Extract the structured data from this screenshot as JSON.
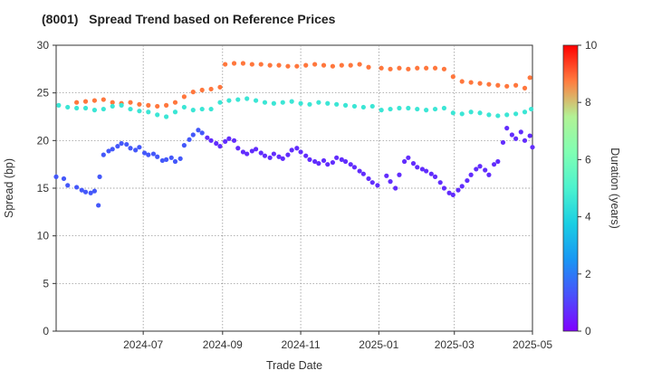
{
  "chart_data": {
    "type": "scatter",
    "title": "(8001)   Spread Trend based on Reference Prices",
    "xlabel": "Trade Date",
    "ylabel": "Spread (bp)",
    "colorbar_label": "Duration (years)",
    "xlim": [
      "2024-04-24",
      "2025-05-01"
    ],
    "ylim": [
      0,
      30
    ],
    "x_ticks": [
      "2024-07-01",
      "2024-09-01",
      "2024-11-01",
      "2025-01-01",
      "2025-03-01",
      "2025-05-01"
    ],
    "x_tick_labels": [
      "2024-07",
      "2024-09",
      "2024-11",
      "2025-01",
      "2025-03",
      "2025-05"
    ],
    "y_ticks": [
      0,
      5,
      10,
      15,
      20,
      25,
      30
    ],
    "colorbar_range": [
      0,
      10
    ],
    "colorbar_ticks": [
      0,
      2,
      4,
      6,
      8,
      10
    ],
    "colormap": "rainbow",
    "grid": true,
    "series": [
      {
        "duration_years": 8.8,
        "points": [
          [
            "2024-05-10",
            24.0
          ],
          [
            "2024-05-17",
            24.1
          ],
          [
            "2024-05-24",
            24.2
          ],
          [
            "2024-05-31",
            24.3
          ],
          [
            "2024-06-07",
            24.0
          ],
          [
            "2024-06-14",
            23.9
          ],
          [
            "2024-06-21",
            24.0
          ],
          [
            "2024-06-28",
            23.8
          ],
          [
            "2024-07-05",
            23.7
          ],
          [
            "2024-07-12",
            23.6
          ],
          [
            "2024-07-19",
            23.7
          ],
          [
            "2024-07-26",
            24.0
          ],
          [
            "2024-08-02",
            24.6
          ],
          [
            "2024-08-09",
            25.1
          ],
          [
            "2024-08-16",
            25.3
          ],
          [
            "2024-08-23",
            25.4
          ],
          [
            "2024-08-30",
            25.6
          ],
          [
            "2024-09-03",
            28.0
          ],
          [
            "2024-09-10",
            28.1
          ],
          [
            "2024-09-17",
            28.1
          ],
          [
            "2024-09-24",
            28.0
          ],
          [
            "2024-10-01",
            28.0
          ],
          [
            "2024-10-08",
            27.9
          ],
          [
            "2024-10-15",
            27.9
          ],
          [
            "2024-10-22",
            27.8
          ],
          [
            "2024-10-29",
            27.8
          ],
          [
            "2024-11-05",
            27.9
          ],
          [
            "2024-11-12",
            28.0
          ],
          [
            "2024-11-19",
            27.9
          ],
          [
            "2024-11-26",
            27.8
          ],
          [
            "2024-12-03",
            27.9
          ],
          [
            "2024-12-10",
            27.9
          ],
          [
            "2024-12-17",
            28.0
          ],
          [
            "2024-12-24",
            27.7
          ],
          [
            "2025-01-03",
            27.6
          ],
          [
            "2025-01-10",
            27.5
          ],
          [
            "2025-01-17",
            27.6
          ],
          [
            "2025-01-24",
            27.5
          ],
          [
            "2025-01-31",
            27.6
          ],
          [
            "2025-02-07",
            27.6
          ],
          [
            "2025-02-14",
            27.6
          ],
          [
            "2025-02-21",
            27.5
          ],
          [
            "2025-02-28",
            26.7
          ],
          [
            "2025-03-07",
            26.2
          ],
          [
            "2025-03-14",
            26.1
          ],
          [
            "2025-03-21",
            26.0
          ],
          [
            "2025-03-28",
            25.9
          ],
          [
            "2025-04-04",
            25.8
          ],
          [
            "2025-04-11",
            25.7
          ],
          [
            "2025-04-18",
            25.8
          ],
          [
            "2025-04-25",
            25.5
          ],
          [
            "2025-04-29",
            26.6
          ]
        ]
      },
      {
        "duration_years": 4.6,
        "points": [
          [
            "2024-04-26",
            23.7
          ],
          [
            "2024-05-03",
            23.5
          ],
          [
            "2024-05-10",
            23.4
          ],
          [
            "2024-05-17",
            23.4
          ],
          [
            "2024-05-24",
            23.2
          ],
          [
            "2024-05-31",
            23.3
          ],
          [
            "2024-06-07",
            23.6
          ],
          [
            "2024-06-14",
            23.7
          ],
          [
            "2024-06-21",
            23.3
          ],
          [
            "2024-06-28",
            23.1
          ],
          [
            "2024-07-05",
            23.0
          ],
          [
            "2024-07-12",
            22.7
          ],
          [
            "2024-07-19",
            22.5
          ],
          [
            "2024-07-26",
            23.0
          ],
          [
            "2024-08-02",
            23.5
          ],
          [
            "2024-08-09",
            23.2
          ],
          [
            "2024-08-16",
            23.3
          ],
          [
            "2024-08-23",
            23.3
          ],
          [
            "2024-08-30",
            24.0
          ],
          [
            "2024-09-06",
            24.2
          ],
          [
            "2024-09-13",
            24.3
          ],
          [
            "2024-09-20",
            24.4
          ],
          [
            "2024-09-27",
            24.2
          ],
          [
            "2024-10-04",
            24.0
          ],
          [
            "2024-10-11",
            23.9
          ],
          [
            "2024-10-18",
            24.0
          ],
          [
            "2024-10-25",
            24.1
          ],
          [
            "2024-11-01",
            23.9
          ],
          [
            "2024-11-08",
            23.8
          ],
          [
            "2024-11-15",
            24.0
          ],
          [
            "2024-11-22",
            23.9
          ],
          [
            "2024-11-29",
            23.8
          ],
          [
            "2024-12-06",
            23.7
          ],
          [
            "2024-12-13",
            23.6
          ],
          [
            "2024-12-20",
            23.5
          ],
          [
            "2024-12-27",
            23.6
          ],
          [
            "2025-01-03",
            23.2
          ],
          [
            "2025-01-10",
            23.3
          ],
          [
            "2025-01-17",
            23.4
          ],
          [
            "2025-01-24",
            23.4
          ],
          [
            "2025-01-31",
            23.3
          ],
          [
            "2025-02-07",
            23.2
          ],
          [
            "2025-02-14",
            23.3
          ],
          [
            "2025-02-21",
            23.4
          ],
          [
            "2025-02-28",
            22.9
          ],
          [
            "2025-03-07",
            22.8
          ],
          [
            "2025-03-14",
            23.0
          ],
          [
            "2025-03-21",
            22.9
          ],
          [
            "2025-03-28",
            22.7
          ],
          [
            "2025-04-04",
            22.6
          ],
          [
            "2025-04-11",
            22.7
          ],
          [
            "2025-04-18",
            22.8
          ],
          [
            "2025-04-25",
            23.0
          ],
          [
            "2025-04-30",
            23.3
          ]
        ]
      },
      {
        "duration_years": 1.4,
        "points": [
          [
            "2024-04-24",
            16.2
          ],
          [
            "2024-04-30",
            16.0
          ],
          [
            "2024-05-03",
            15.3
          ],
          [
            "2024-05-10",
            15.1
          ],
          [
            "2024-05-14",
            14.8
          ],
          [
            "2024-05-17",
            14.6
          ],
          [
            "2024-05-21",
            14.5
          ],
          [
            "2024-05-24",
            14.7
          ],
          [
            "2024-05-27",
            13.2
          ],
          [
            "2024-05-28",
            16.2
          ],
          [
            "2024-05-31",
            18.5
          ],
          [
            "2024-06-04",
            18.9
          ],
          [
            "2024-06-07",
            19.1
          ],
          [
            "2024-06-11",
            19.4
          ],
          [
            "2024-06-14",
            19.7
          ],
          [
            "2024-06-18",
            19.6
          ],
          [
            "2024-06-21",
            19.2
          ],
          [
            "2024-06-25",
            19.0
          ],
          [
            "2024-06-28",
            19.3
          ],
          [
            "2024-07-02",
            18.7
          ],
          [
            "2024-07-05",
            18.5
          ],
          [
            "2024-07-09",
            18.6
          ],
          [
            "2024-07-12",
            18.3
          ],
          [
            "2024-07-16",
            17.9
          ],
          [
            "2024-07-19",
            18.0
          ],
          [
            "2024-07-23",
            18.2
          ],
          [
            "2024-07-26",
            17.8
          ],
          [
            "2024-07-30",
            18.1
          ],
          [
            "2024-08-02",
            19.5
          ],
          [
            "2024-08-06",
            20.1
          ],
          [
            "2024-08-09",
            20.6
          ],
          [
            "2024-08-13",
            21.1
          ],
          [
            "2024-08-16",
            20.8
          ]
        ]
      },
      {
        "duration_years": 0.7,
        "points": [
          [
            "2024-08-20",
            20.3
          ],
          [
            "2024-08-23",
            20.0
          ],
          [
            "2024-08-27",
            19.7
          ],
          [
            "2024-08-30",
            19.4
          ],
          [
            "2024-09-03",
            19.9
          ],
          [
            "2024-09-06",
            20.2
          ],
          [
            "2024-09-10",
            20.0
          ],
          [
            "2024-09-13",
            19.2
          ],
          [
            "2024-09-17",
            18.8
          ],
          [
            "2024-09-20",
            18.6
          ],
          [
            "2024-09-24",
            18.9
          ],
          [
            "2024-09-27",
            19.1
          ],
          [
            "2024-10-01",
            18.7
          ],
          [
            "2024-10-04",
            18.4
          ],
          [
            "2024-10-08",
            18.2
          ],
          [
            "2024-10-11",
            18.6
          ],
          [
            "2024-10-15",
            18.3
          ],
          [
            "2024-10-18",
            18.1
          ],
          [
            "2024-10-22",
            18.5
          ],
          [
            "2024-10-25",
            19.0
          ],
          [
            "2024-10-29",
            19.2
          ],
          [
            "2024-11-01",
            18.8
          ],
          [
            "2024-11-05",
            18.4
          ],
          [
            "2024-11-08",
            18.0
          ],
          [
            "2024-11-12",
            17.8
          ],
          [
            "2024-11-15",
            17.6
          ],
          [
            "2024-11-19",
            17.9
          ],
          [
            "2024-11-22",
            17.5
          ],
          [
            "2024-11-26",
            17.7
          ],
          [
            "2024-11-29",
            18.2
          ],
          [
            "2024-12-03",
            18.0
          ],
          [
            "2024-12-06",
            17.8
          ],
          [
            "2024-12-10",
            17.5
          ],
          [
            "2024-12-13",
            17.2
          ],
          [
            "2024-12-17",
            16.8
          ],
          [
            "2024-12-20",
            16.5
          ],
          [
            "2024-12-24",
            16.0
          ],
          [
            "2024-12-27",
            15.6
          ],
          [
            "2024-12-31",
            15.3
          ],
          [
            "2025-01-07",
            16.3
          ],
          [
            "2025-01-10",
            15.7
          ],
          [
            "2025-01-14",
            15.0
          ],
          [
            "2025-01-17",
            16.4
          ],
          [
            "2025-01-21",
            17.8
          ],
          [
            "2025-01-24",
            18.2
          ],
          [
            "2025-01-28",
            17.6
          ],
          [
            "2025-01-31",
            17.2
          ],
          [
            "2025-02-04",
            17.0
          ],
          [
            "2025-02-07",
            16.8
          ],
          [
            "2025-02-11",
            16.5
          ],
          [
            "2025-02-14",
            16.2
          ],
          [
            "2025-02-18",
            15.6
          ],
          [
            "2025-02-21",
            15.0
          ],
          [
            "2025-02-25",
            14.5
          ],
          [
            "2025-02-28",
            14.3
          ],
          [
            "2025-03-04",
            14.8
          ],
          [
            "2025-03-07",
            15.2
          ],
          [
            "2025-03-11",
            15.8
          ],
          [
            "2025-03-14",
            16.4
          ],
          [
            "2025-03-18",
            17.0
          ],
          [
            "2025-03-21",
            17.3
          ],
          [
            "2025-03-25",
            16.9
          ],
          [
            "2025-03-28",
            16.4
          ],
          [
            "2025-04-01",
            17.5
          ],
          [
            "2025-04-04",
            17.8
          ],
          [
            "2025-04-08",
            19.8
          ],
          [
            "2025-04-11",
            21.3
          ],
          [
            "2025-04-15",
            20.6
          ],
          [
            "2025-04-18",
            20.2
          ],
          [
            "2025-04-22",
            20.9
          ],
          [
            "2025-04-25",
            20.0
          ],
          [
            "2025-04-29",
            20.5
          ],
          [
            "2025-05-01",
            19.3
          ]
        ]
      }
    ]
  }
}
